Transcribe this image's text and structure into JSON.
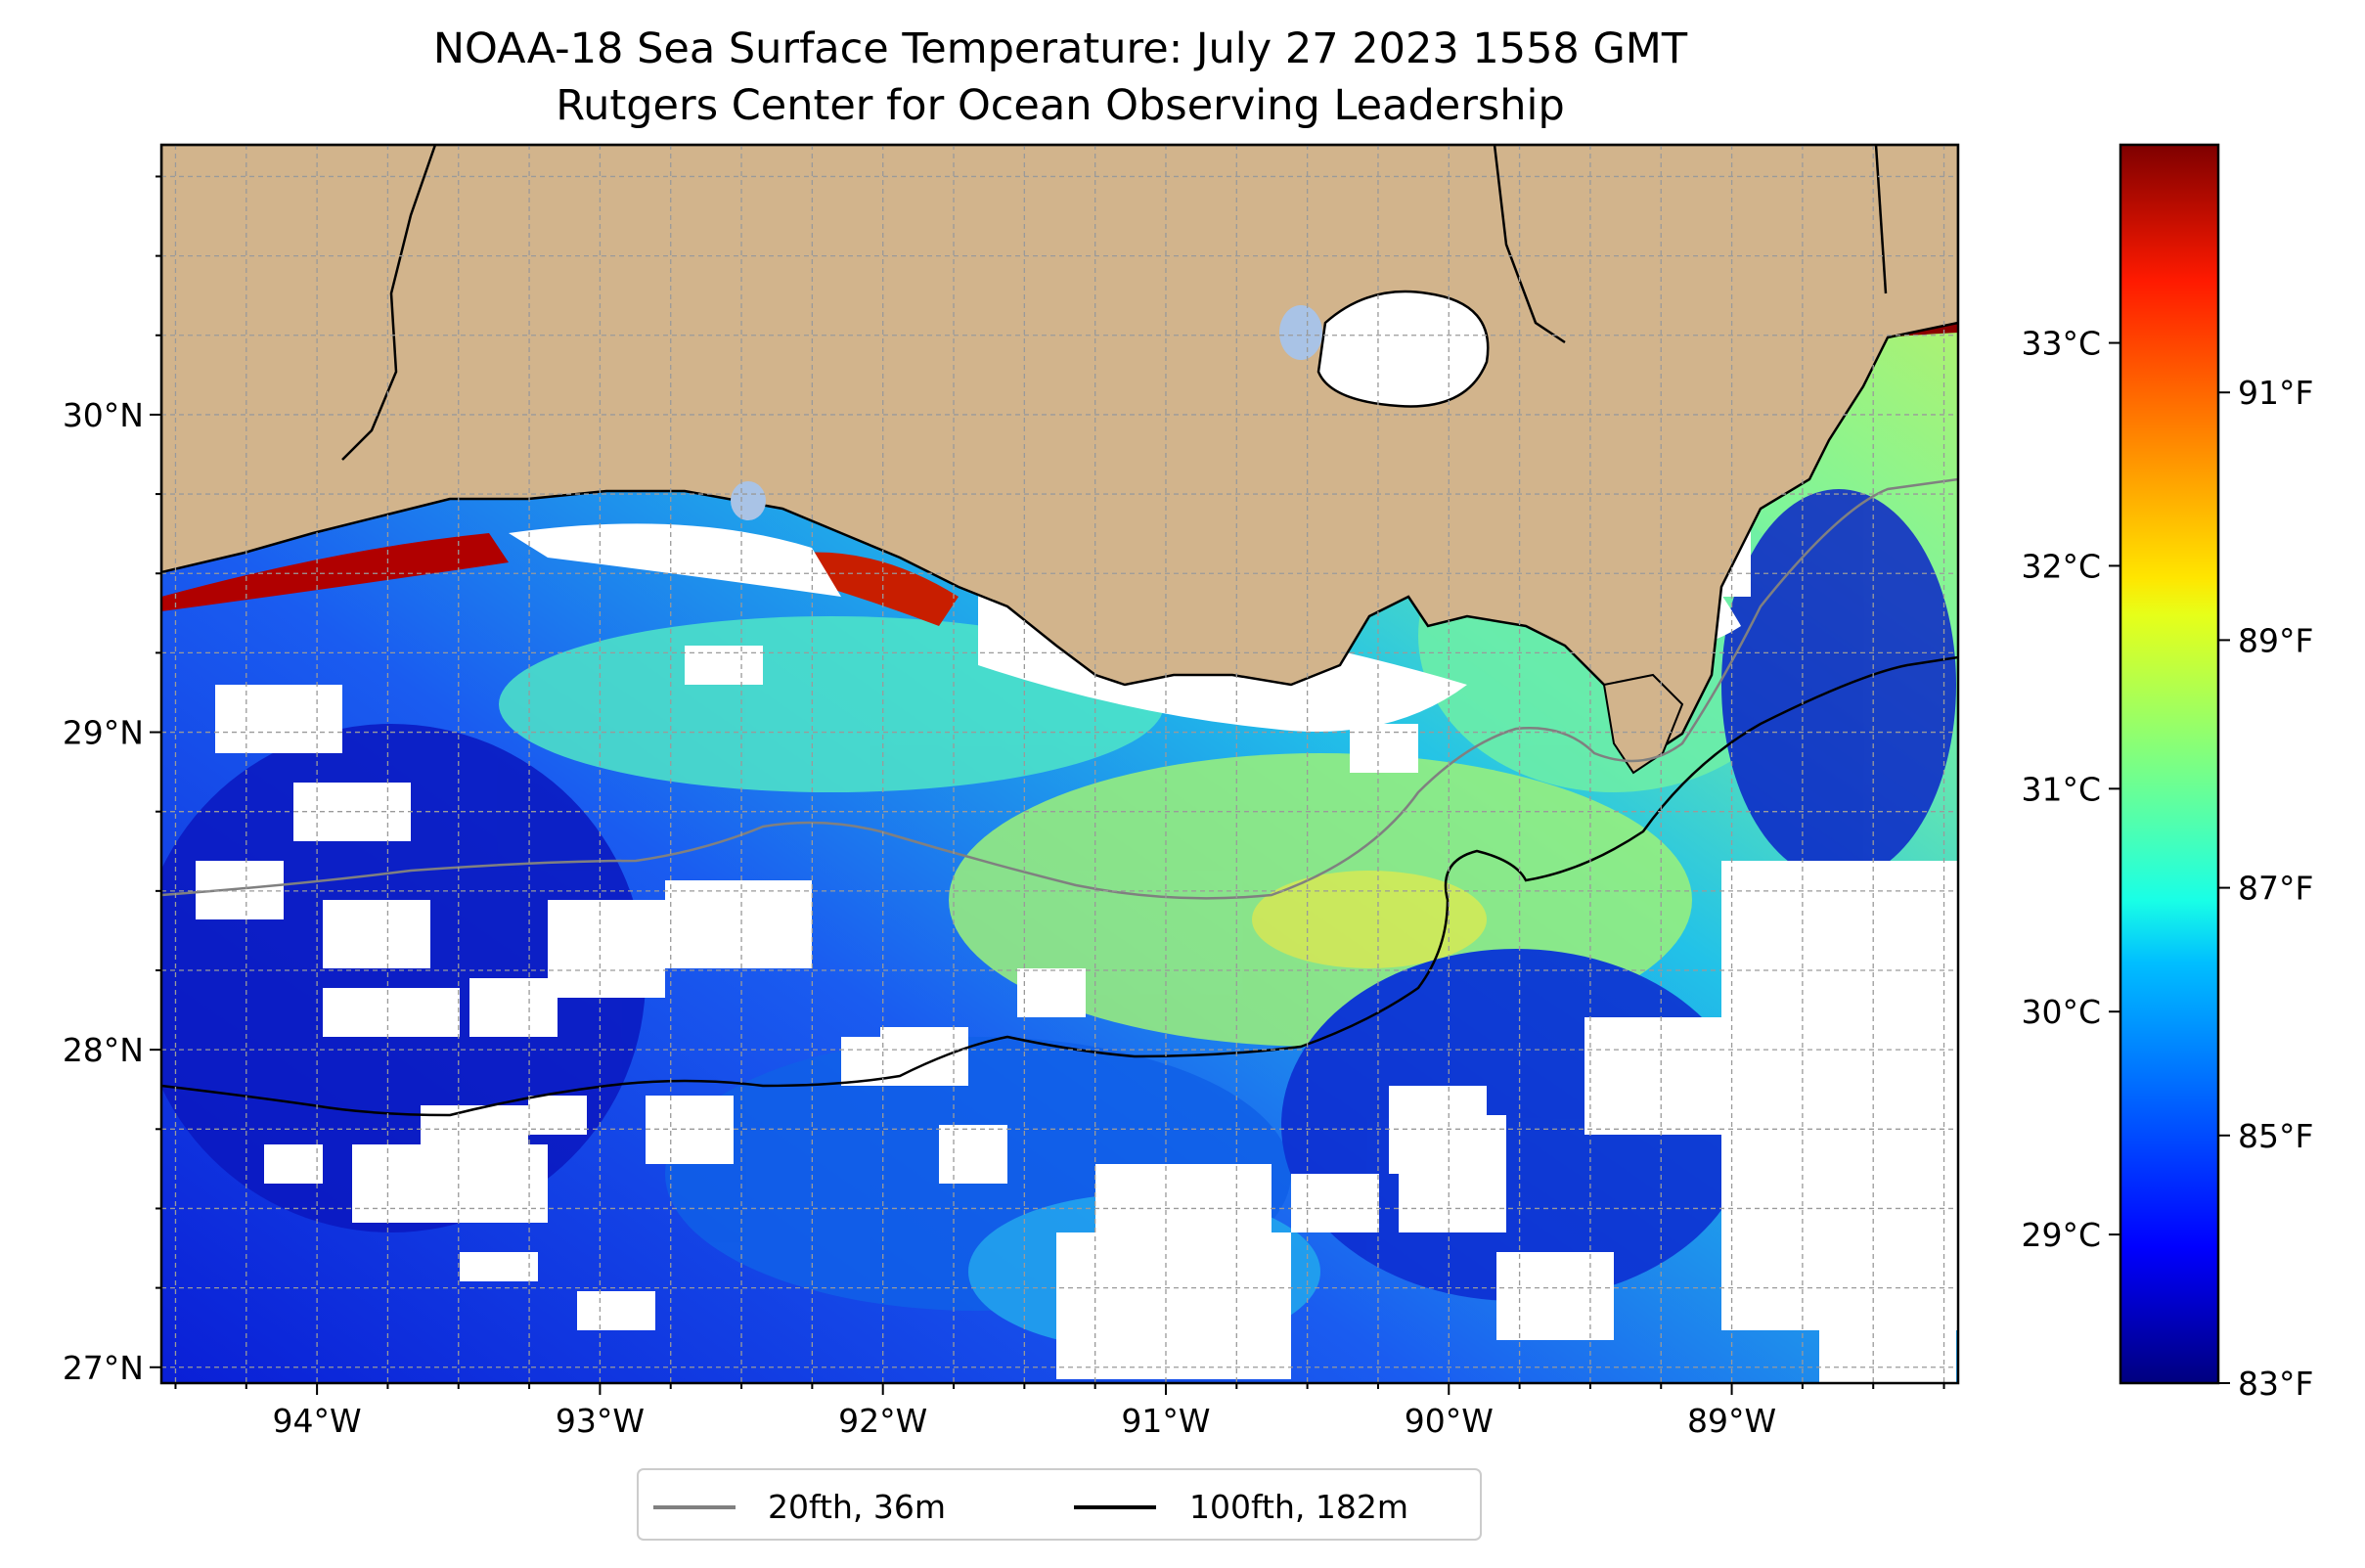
{
  "title": {
    "line1": "NOAA-18 Sea Surface Temperature: July 27 2023 1558 GMT",
    "line2": "Rutgers Center for Ocean Observing Leadership"
  },
  "map": {
    "lon_range": [
      -94.55,
      -88.2
    ],
    "lat_range": [
      26.95,
      30.85
    ],
    "lon_ticks": [
      {
        "value": -94,
        "label": "94°W"
      },
      {
        "value": -93,
        "label": "93°W"
      },
      {
        "value": -92,
        "label": "92°W"
      },
      {
        "value": -91,
        "label": "91°W"
      },
      {
        "value": -90,
        "label": "90°W"
      },
      {
        "value": -89,
        "label": "89°W"
      }
    ],
    "lat_ticks": [
      {
        "value": 27,
        "label": "27°N"
      },
      {
        "value": 28,
        "label": "28°N"
      },
      {
        "value": 29,
        "label": "29°N"
      },
      {
        "value": 30,
        "label": "30°N"
      }
    ],
    "gridlines": true,
    "colors": {
      "land": "#d2b48c",
      "lake": "#a9c3e6",
      "no_data": "#ffffff",
      "isobath_20fth": "#808080",
      "isobath_100fth": "#000000"
    }
  },
  "legend": {
    "placement": "bottom-center",
    "items": [
      {
        "label": "20fth, 36m",
        "color": "#808080"
      },
      {
        "label": "100fth, 182m",
        "color": "#000000"
      }
    ]
  },
  "colorbar": {
    "colormap": "jet",
    "range_f": [
      83,
      93
    ],
    "celsius_ticks": [
      {
        "value": 29,
        "label": "29°C"
      },
      {
        "value": 30,
        "label": "30°C"
      },
      {
        "value": 31,
        "label": "31°C"
      },
      {
        "value": 32,
        "label": "32°C"
      },
      {
        "value": 33,
        "label": "33°C"
      }
    ],
    "fahrenheit_ticks": [
      {
        "value": 83,
        "label": "83°F"
      },
      {
        "value": 85,
        "label": "85°F"
      },
      {
        "value": 87,
        "label": "87°F"
      },
      {
        "value": 89,
        "label": "89°F"
      },
      {
        "value": 91,
        "label": "91°F"
      }
    ]
  }
}
